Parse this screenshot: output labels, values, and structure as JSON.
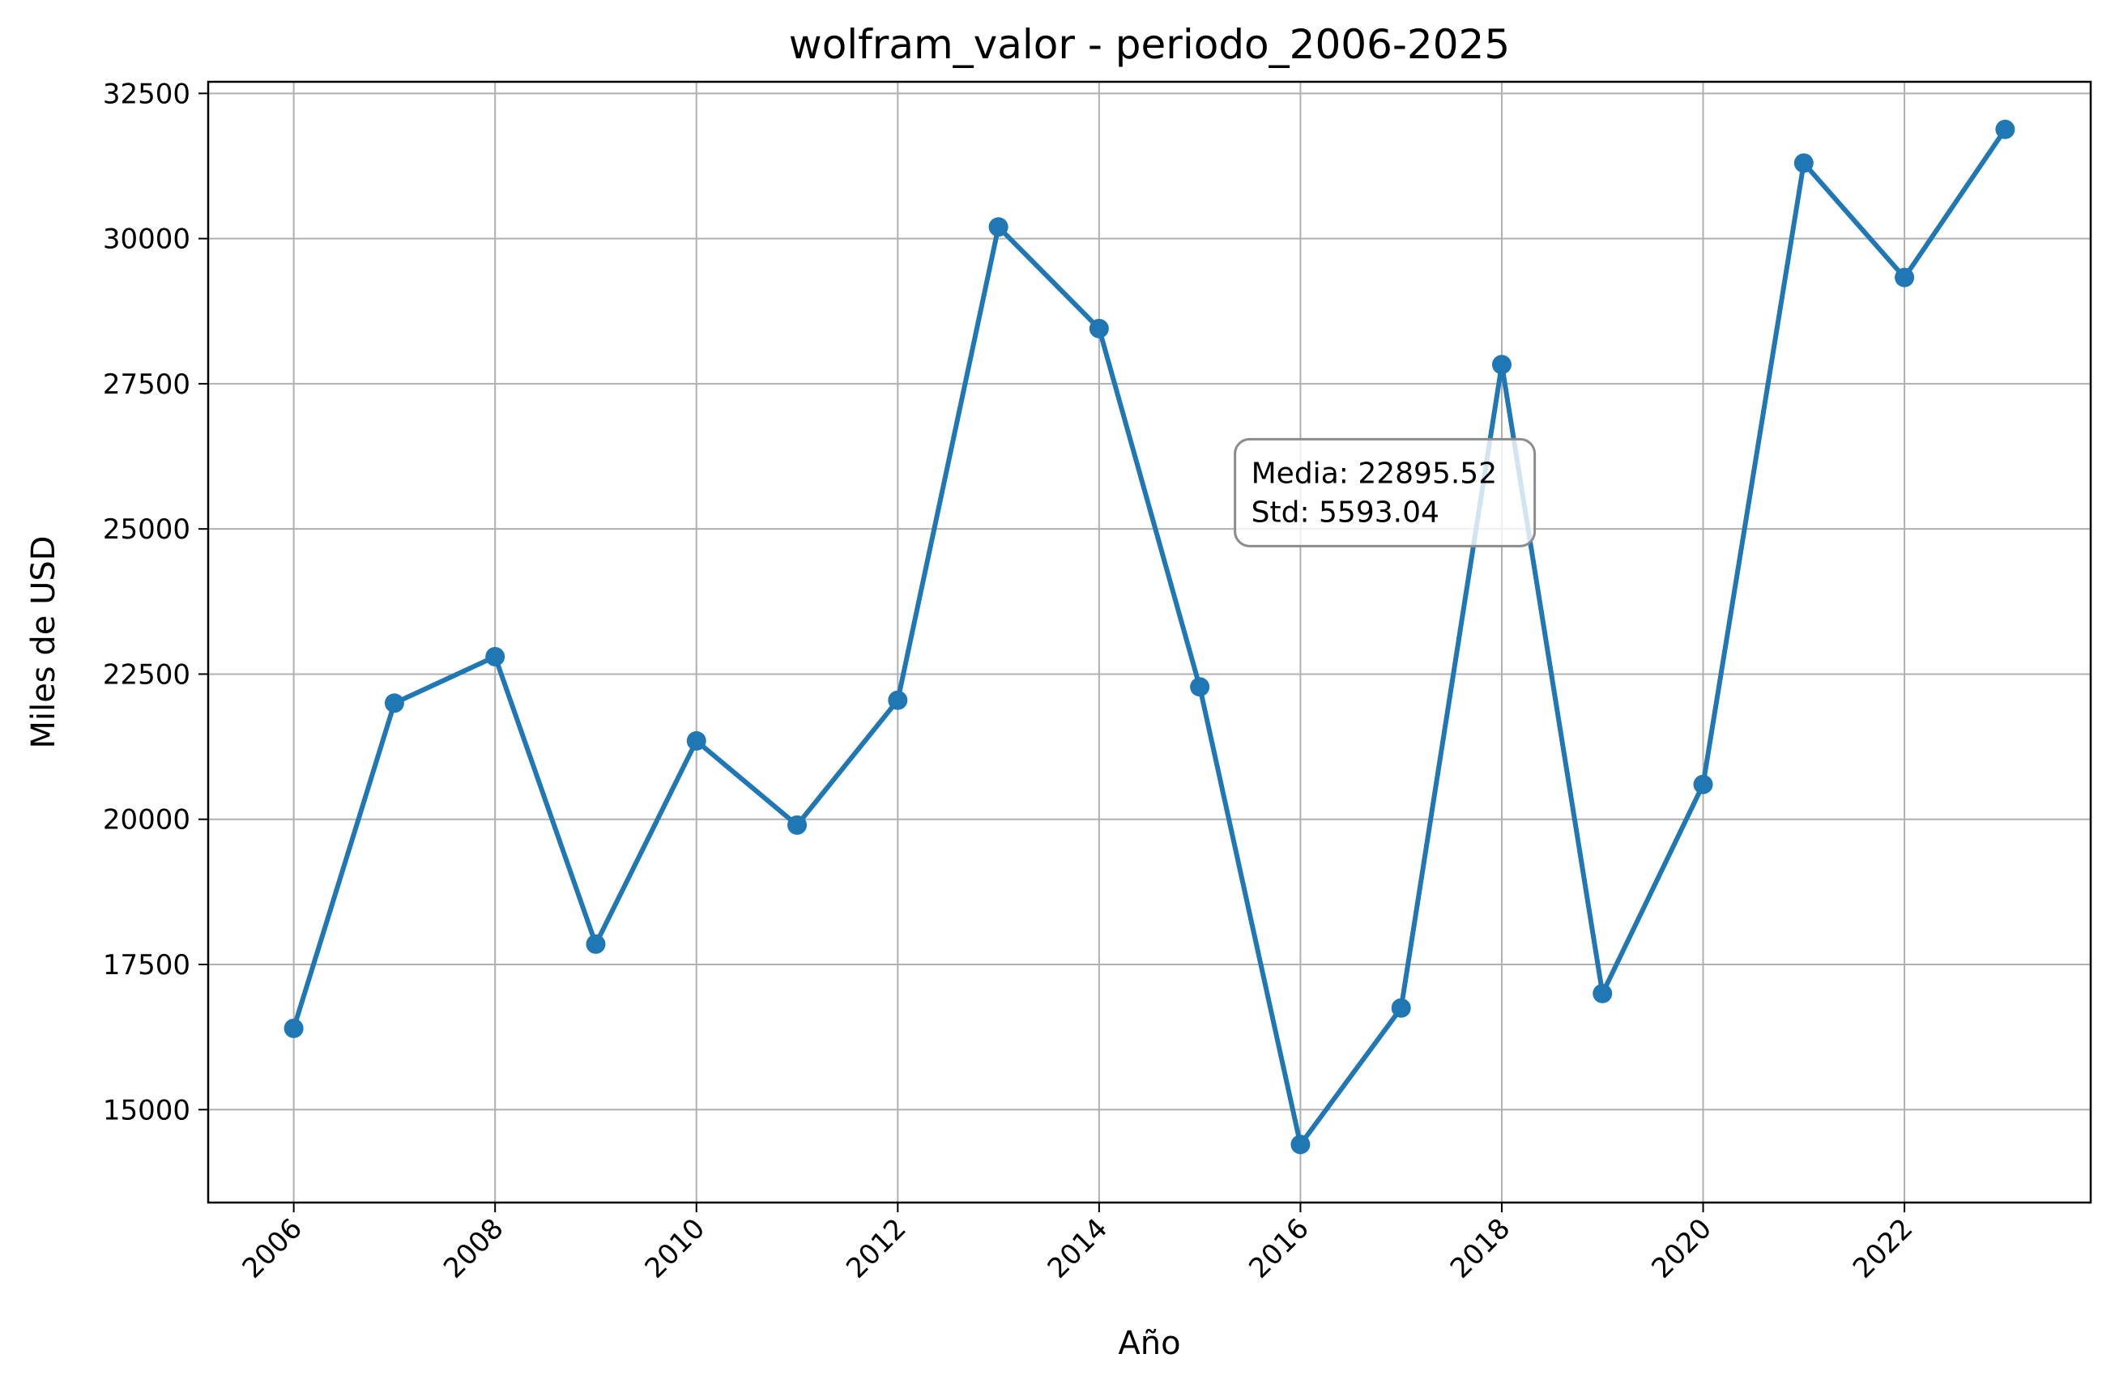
{
  "chart_data": {
    "type": "line",
    "title": "wolfram_valor - periodo_2006-2025",
    "xlabel": "Año",
    "ylabel": "Miles de USD",
    "x": [
      2006,
      2007,
      2008,
      2009,
      2010,
      2011,
      2012,
      2013,
      2014,
      2015,
      2016,
      2017,
      2018,
      2019,
      2020,
      2021,
      2022,
      2023
    ],
    "series": [
      {
        "values": [
          16400,
          22000,
          22800,
          17850,
          21350,
          19900,
          22050,
          30200,
          28450,
          22280,
          14400,
          16750,
          27830,
          17000,
          20600,
          31300,
          29330,
          31880
        ]
      }
    ],
    "xlim": [
      2005.15,
      2023.85
    ],
    "ylim": [
      13400,
      32700
    ],
    "xticks": [
      "2006",
      "2008",
      "2010",
      "2012",
      "2014",
      "2016",
      "2018",
      "2020",
      "2022"
    ],
    "yticks": [
      "15000",
      "17500",
      "20000",
      "22500",
      "25000",
      "27500",
      "30000",
      "32500"
    ],
    "grid": true,
    "line_color": "#1f77b4",
    "grid_color": "#b0b0b0",
    "annotation": {
      "lines": [
        "Media: 22895.52",
        "Std: 5593.04"
      ],
      "position_data": [
        2015.35,
        26350
      ]
    }
  }
}
